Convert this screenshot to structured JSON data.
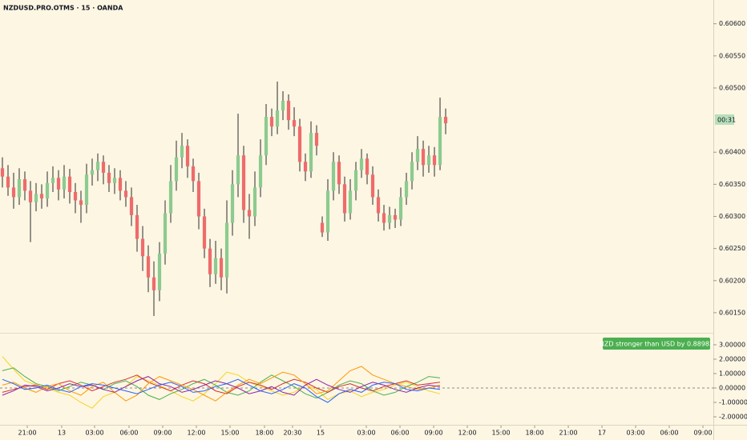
{
  "chart_data": [
    {
      "type": "candlestick",
      "title": "NZDUSD.PRO.OTMS · 15 · OANDA",
      "countdown": "00:31",
      "up_color": "#8ccb8f",
      "down_color": "#ef6b6b",
      "wick_color": "#2b2b2b",
      "open": [
        0.60375,
        0.60362,
        0.60345,
        0.6033,
        0.60358,
        0.6034,
        0.60322,
        0.60335,
        0.60328,
        0.60352,
        0.6036,
        0.60342,
        0.60362,
        0.60338,
        0.60325,
        0.60318,
        0.60365,
        0.60372,
        0.60385,
        0.60368,
        0.60352,
        0.6036,
        0.6034,
        0.6033,
        0.60302,
        0.60265,
        0.60238,
        0.60205,
        0.60185,
        0.60242,
        0.60305,
        0.60355,
        0.60392,
        0.6041,
        0.60378,
        0.60355,
        0.603,
        0.6025,
        0.6021,
        0.60235,
        0.60205,
        0.6029,
        0.6035,
        0.60395,
        0.6031,
        0.603,
        0.60345,
        0.60395,
        0.60455,
        0.6044,
        0.60465,
        0.6048,
        0.6045,
        0.6044,
        0.60385,
        0.6037,
        0.6043,
        0.6029,
        0.60275,
        0.6034,
        0.60385,
        0.6035,
        0.60305,
        0.6034,
        0.60372,
        0.6039,
        0.60365,
        0.6033,
        0.60305,
        0.6029,
        0.60302,
        0.60295,
        0.6033,
        0.60355,
        0.60385,
        0.60405,
        0.6038,
        0.60395,
        0.6038,
        0.60455
      ],
      "high": [
        0.60392,
        0.6038,
        0.60368,
        0.60375,
        0.6037,
        0.60355,
        0.60352,
        0.6035,
        0.6037,
        0.60378,
        0.60372,
        0.6038,
        0.60374,
        0.60352,
        0.6034,
        0.60382,
        0.6039,
        0.60398,
        0.60395,
        0.6038,
        0.60375,
        0.60372,
        0.60355,
        0.60345,
        0.60318,
        0.60285,
        0.60255,
        0.6023,
        0.6026,
        0.60325,
        0.6038,
        0.60418,
        0.6043,
        0.6042,
        0.6039,
        0.60368,
        0.60312,
        0.60265,
        0.60262,
        0.6025,
        0.60325,
        0.60372,
        0.6046,
        0.6041,
        0.60335,
        0.6037,
        0.6042,
        0.60475,
        0.60468,
        0.6051,
        0.60495,
        0.6049,
        0.6047,
        0.60452,
        0.60398,
        0.60448,
        0.60442,
        0.603,
        0.60358,
        0.604,
        0.60395,
        0.60362,
        0.60358,
        0.60385,
        0.60405,
        0.60398,
        0.60378,
        0.60342,
        0.60318,
        0.60315,
        0.60312,
        0.60345,
        0.60368,
        0.604,
        0.60425,
        0.60418,
        0.6041,
        0.60408,
        0.60485,
        0.60468
      ],
      "low": [
        0.60345,
        0.60332,
        0.60312,
        0.60318,
        0.60325,
        0.6026,
        0.60308,
        0.60312,
        0.60315,
        0.60338,
        0.60325,
        0.60328,
        0.6032,
        0.60305,
        0.6029,
        0.60305,
        0.60348,
        0.60355,
        0.6035,
        0.60338,
        0.60335,
        0.60325,
        0.60315,
        0.60285,
        0.60245,
        0.60215,
        0.60182,
        0.60145,
        0.60168,
        0.60225,
        0.6029,
        0.6034,
        0.60375,
        0.6036,
        0.60338,
        0.6028,
        0.60235,
        0.6019,
        0.60195,
        0.60185,
        0.6018,
        0.6027,
        0.6033,
        0.6029,
        0.60265,
        0.60285,
        0.6033,
        0.6038,
        0.60425,
        0.60428,
        0.6045,
        0.60435,
        0.60425,
        0.6037,
        0.60355,
        0.6036,
        0.60395,
        0.60268,
        0.60262,
        0.60325,
        0.60335,
        0.60292,
        0.60295,
        0.60325,
        0.6036,
        0.6035,
        0.60318,
        0.60292,
        0.60278,
        0.6028,
        0.60282,
        0.60285,
        0.60318,
        0.60342,
        0.60372,
        0.60362,
        0.60368,
        0.60362,
        0.60372,
        0.60428
      ],
      "close": [
        0.60362,
        0.60345,
        0.6033,
        0.60358,
        0.6034,
        0.60322,
        0.60335,
        0.60328,
        0.60352,
        0.6036,
        0.60342,
        0.60362,
        0.60338,
        0.60325,
        0.60318,
        0.60365,
        0.60372,
        0.60385,
        0.60368,
        0.60352,
        0.6036,
        0.6034,
        0.6033,
        0.60302,
        0.60265,
        0.60238,
        0.60205,
        0.60185,
        0.60242,
        0.60305,
        0.60355,
        0.60392,
        0.6041,
        0.60378,
        0.60355,
        0.603,
        0.6025,
        0.6021,
        0.60235,
        0.60205,
        0.6029,
        0.6035,
        0.60395,
        0.6031,
        0.603,
        0.60345,
        0.60395,
        0.60455,
        0.6044,
        0.60465,
        0.6048,
        0.6045,
        0.6044,
        0.60385,
        0.6037,
        0.6043,
        0.6041,
        0.60275,
        0.6034,
        0.60385,
        0.6035,
        0.60305,
        0.6034,
        0.60372,
        0.6039,
        0.60365,
        0.6033,
        0.60305,
        0.6029,
        0.60302,
        0.60295,
        0.6033,
        0.60355,
        0.60385,
        0.60405,
        0.6038,
        0.60395,
        0.6038,
        0.60455,
        0.60445
      ],
      "xlim": [
        -0.43,
        126.71
      ],
      "xticks": [
        {
          "value": 4.43,
          "label": "21:00"
        },
        {
          "value": 10.57,
          "label": "13"
        },
        {
          "value": 16.43,
          "label": "03:00"
        },
        {
          "value": 22.57,
          "label": "06:00"
        },
        {
          "value": 28.57,
          "label": "09:00"
        },
        {
          "value": 34.57,
          "label": "12:00"
        },
        {
          "value": 40.57,
          "label": "15:00"
        },
        {
          "value": 46.71,
          "label": "18:00"
        },
        {
          "value": 51.71,
          "label": "20:30"
        },
        {
          "value": 56.71,
          "label": "15"
        },
        {
          "value": 64.86,
          "label": "03:00"
        },
        {
          "value": 70.86,
          "label": "06:00"
        },
        {
          "value": 76.86,
          "label": "09:00"
        },
        {
          "value": 82.86,
          "label": "12:00"
        },
        {
          "value": 88.86,
          "label": "15:00"
        },
        {
          "value": 94.86,
          "label": "18:00"
        },
        {
          "value": 100.86,
          "label": "21:00"
        },
        {
          "value": 106.86,
          "label": "17"
        },
        {
          "value": 112.86,
          "label": "03:00"
        },
        {
          "value": 118.86,
          "label": "06:00"
        },
        {
          "value": 124.86,
          "label": "09:00"
        }
      ],
      "ylim": [
        0.6012,
        0.60637
      ],
      "yticks": [
        {
          "value": 0.606,
          "label": "0.60600"
        },
        {
          "value": 0.6055,
          "label": "0.60550"
        },
        {
          "value": 0.605,
          "label": "0.60500"
        },
        {
          "value": 0.604,
          "label": "0.60400"
        },
        {
          "value": 0.6035,
          "label": "0.60350"
        },
        {
          "value": 0.603,
          "label": "0.60300"
        },
        {
          "value": 0.6025,
          "label": "0.60250"
        },
        {
          "value": 0.602,
          "label": "0.60200"
        },
        {
          "value": 0.6015,
          "label": "0.60150"
        }
      ]
    },
    {
      "type": "line",
      "annotation": "NZD stronger than USD by 0.88982",
      "annotation_color": "#4caf50",
      "xlim": [
        -0.21,
        63.36
      ],
      "ylim": [
        -2.5,
        3.72
      ],
      "yticks": [
        {
          "value": 3,
          "label": "3.00000"
        },
        {
          "value": 2,
          "label": "2.00000"
        },
        {
          "value": 1,
          "label": "1.00000"
        },
        {
          "value": 0,
          "label": "0.00000"
        },
        {
          "value": -1,
          "label": "-1.00000"
        },
        {
          "value": -2,
          "label": "-2.00000"
        }
      ],
      "zero_line": 0,
      "series": [
        {
          "color": "#f5d41e",
          "values": [
            2.2,
            1.3,
            0.5,
            0.2,
            0.0,
            -0.3,
            -0.5,
            -1.0,
            -1.4,
            -0.6,
            -0.3,
            0.1,
            0.8,
            0.5,
            0.2,
            -0.2,
            -0.6,
            -0.9,
            -0.4,
            0.3,
            1.1,
            0.9,
            0.4,
            0.1,
            -0.2,
            -0.5,
            -0.3,
            0.2,
            -0.1,
            -0.8,
            -0.4,
            -0.2,
            -0.6,
            -0.3,
            -0.1,
            0.2,
            0.4,
            0.1,
            -0.2,
            -0.4
          ]
        },
        {
          "color": "#4caf50",
          "values": [
            1.2,
            1.4,
            0.8,
            0.3,
            0.1,
            -0.2,
            0.1,
            0.4,
            0.2,
            -0.1,
            0.3,
            0.5,
            0.1,
            -0.5,
            -0.8,
            -0.4,
            -0.1,
            0.3,
            0.6,
            0.2,
            -0.3,
            -0.5,
            -0.2,
            0.4,
            0.9,
            0.5,
            0.1,
            -0.4,
            -0.7,
            -0.3,
            0.2,
            0.5,
            0.3,
            -0.2,
            -0.5,
            -0.3,
            0.1,
            0.4,
            0.8,
            0.7
          ]
        },
        {
          "color": "#d32f2f",
          "values": [
            -0.3,
            -0.1,
            0.1,
            0.2,
            -0.1,
            0.3,
            0.5,
            0.2,
            -0.2,
            0.1,
            0.4,
            0.6,
            0.9,
            0.4,
            0.1,
            -0.2,
            0.2,
            0.5,
            0.3,
            -0.2,
            -0.4,
            0.1,
            0.4,
            0.2,
            -0.1,
            0.3,
            0.6,
            0.4,
            0.0,
            -0.3,
            0.1,
            0.3,
            0.0,
            -0.2,
            0.1,
            0.3,
            0.5,
            0.2,
            0.3,
            0.4
          ]
        },
        {
          "color": "#ff9800",
          "values": [
            0.2,
            0.4,
            0.0,
            -0.3,
            0.1,
            0.3,
            -0.2,
            -0.5,
            0.1,
            0.4,
            -0.3,
            -0.9,
            -0.5,
            0.3,
            0.8,
            0.5,
            0.2,
            -0.1,
            -0.5,
            -0.9,
            -0.3,
            0.2,
            0.6,
            0.3,
            0.7,
            1.1,
            0.9,
            0.3,
            -0.4,
            -0.2,
            0.5,
            1.2,
            1.5,
            0.9,
            0.6,
            0.3,
            0.1,
            -0.1,
            0.0,
            0.2
          ]
        },
        {
          "color": "#8e24aa",
          "values": [
            -0.5,
            -0.2,
            0.2,
            0.1,
            -0.2,
            0.0,
            0.3,
            0.1,
            0.2,
            -0.1,
            -0.3,
            0.1,
            0.5,
            0.8,
            0.3,
            0.1,
            -0.3,
            -0.1,
            0.2,
            0.5,
            0.3,
            0.0,
            -0.4,
            -0.2,
            0.1,
            -0.3,
            -0.5,
            0.2,
            0.6,
            0.2,
            -0.1,
            -0.3,
            0.1,
            0.4,
            0.2,
            -0.1,
            -0.3,
            0.0,
            0.2,
            0.1
          ]
        },
        {
          "color": "#2962ff",
          "values": [
            0.6,
            0.3,
            -0.1,
            0.0,
            0.2,
            -0.1,
            -0.3,
            0.1,
            0.3,
            0.2,
            0.0,
            -0.2,
            -0.4,
            -0.1,
            0.2,
            0.4,
            0.1,
            -0.3,
            -0.2,
            0.1,
            0.3,
            0.6,
            0.2,
            -0.2,
            -0.4,
            -0.1,
            0.3,
            0.0,
            -0.6,
            -1.0,
            -0.4,
            -0.1,
            -0.3,
            0.2,
            0.4,
            0.3,
            -0.1,
            -0.2,
            0.0,
            -0.1
          ]
        }
      ]
    }
  ]
}
